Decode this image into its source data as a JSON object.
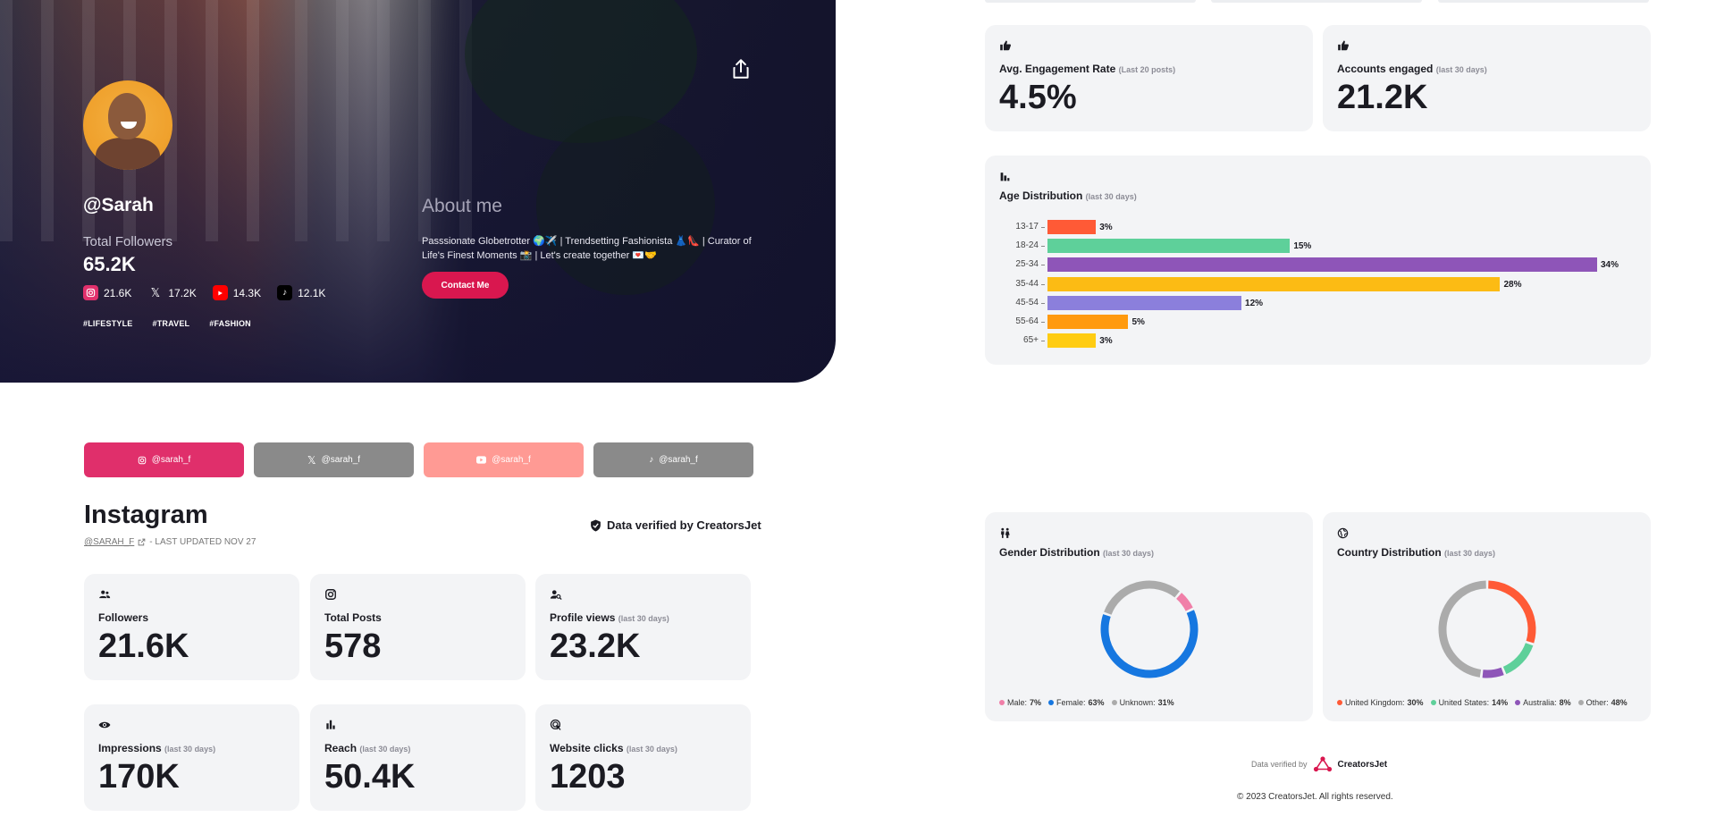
{
  "profile": {
    "handle": "@Sarah",
    "total_followers_label": "Total Followers",
    "total_followers": "65.2K",
    "socials": [
      {
        "icon": "instagram-icon",
        "value": "21.6K",
        "color": "#e1306c"
      },
      {
        "icon": "x-icon",
        "value": "17.2K",
        "color": "#000000"
      },
      {
        "icon": "youtube-icon",
        "value": "14.3K",
        "color": "#ff0000"
      },
      {
        "icon": "tiktok-icon",
        "value": "12.1K",
        "color": "#000000"
      }
    ],
    "tags": [
      "#LIFESTYLE",
      "#TRAVEL",
      "#FASHION"
    ],
    "about_title": "About me",
    "about_text": "Passsionate Globetrotter 🌍✈️ | Trendsetting Fashionista 👗👠 | Curator of Life's Finest Moments 📸 | Let's create together 💌🤝",
    "contact_label": "Contact Me"
  },
  "platform_tabs": [
    {
      "label": "@sarah_f",
      "icon": "instagram-icon",
      "color": "#e02f6b"
    },
    {
      "label": "@sarah_f",
      "icon": "x-icon",
      "color": "#8a8a8a"
    },
    {
      "label": "@sarah_f",
      "icon": "youtube-icon",
      "color": "#ff9a94"
    },
    {
      "label": "@sarah_f",
      "icon": "tiktok-icon",
      "color": "#8a8a8a"
    }
  ],
  "instagram": {
    "title": "Instagram",
    "handle_link": "@SARAH_F",
    "updated": "- LAST UPDATED NOV 27",
    "verified": "Data verified by CreatorsJet"
  },
  "stats": [
    {
      "icon": "people-icon",
      "label": "Followers",
      "period": "",
      "value": "21.6K"
    },
    {
      "icon": "instagram-icon",
      "label": "Total Posts",
      "period": "",
      "value": "578"
    },
    {
      "icon": "profile-search-icon",
      "label": "Profile views",
      "period": "(last 30 days)",
      "value": "23.2K"
    },
    {
      "icon": "eye-icon",
      "label": "Impressions",
      "period": "(last 30 days)",
      "value": "170K"
    },
    {
      "icon": "bar-chart-icon",
      "label": "Reach",
      "period": "(last 30 days)",
      "value": "50.4K"
    },
    {
      "icon": "click-icon",
      "label": "Website clicks",
      "period": "(last 30 days)",
      "value": "1203"
    }
  ],
  "engagement": [
    {
      "icon": "thumbs-up-icon",
      "label": "Avg. Engagement Rate",
      "period": "(Last 20 posts)",
      "value": "4.5%"
    },
    {
      "icon": "thumbs-up-icon",
      "label": "Accounts engaged",
      "period": "(last 30 days)",
      "value": "21.2K"
    }
  ],
  "age": {
    "title": "Age Distribution",
    "period": "(last 30 days)",
    "rows": [
      {
        "label": "13-17",
        "value": 3,
        "text": "3%",
        "color": "#ff5a36"
      },
      {
        "label": "18-24",
        "value": 15,
        "text": "15%",
        "color": "#5ed09a"
      },
      {
        "label": "25-34",
        "value": 34,
        "text": "34%",
        "color": "#8e55b8"
      },
      {
        "label": "35-44",
        "value": 28,
        "text": "28%",
        "color": "#fcbb14"
      },
      {
        "label": "45-54",
        "value": 12,
        "text": "12%",
        "color": "#8b7fdc"
      },
      {
        "label": "55-64",
        "value": 5,
        "text": "5%",
        "color": "#ff9a0f"
      },
      {
        "label": "65+",
        "value": 3,
        "text": "3%",
        "color": "#ffcc12"
      }
    ]
  },
  "gender": {
    "title": "Gender Distribution",
    "period": "(last 30 days)",
    "segments": [
      {
        "label": "Male:",
        "value": 7,
        "text": "7%",
        "color": "#f07fa8"
      },
      {
        "label": "Female:",
        "value": 63,
        "text": "63%",
        "color": "#1677e0"
      },
      {
        "label": "Unknown:",
        "value": 31,
        "text": "31%",
        "color": "#ababab"
      }
    ]
  },
  "country": {
    "title": "Country Distribution",
    "period": "(last 30 days)",
    "segments": [
      {
        "label": "United Kingdom:",
        "value": 30,
        "text": "30%",
        "color": "#ff5a36"
      },
      {
        "label": "United States:",
        "value": 14,
        "text": "14%",
        "color": "#5ed09a"
      },
      {
        "label": "Australia:",
        "value": 8,
        "text": "8%",
        "color": "#8e55b8"
      },
      {
        "label": "Other:",
        "value": 48,
        "text": "48%",
        "color": "#ababab"
      }
    ]
  },
  "footer": {
    "verified_by": "Data verified by",
    "brand": "CreatorsJet",
    "copyright": "© 2023 CreatorsJet. All rights reserved."
  }
}
